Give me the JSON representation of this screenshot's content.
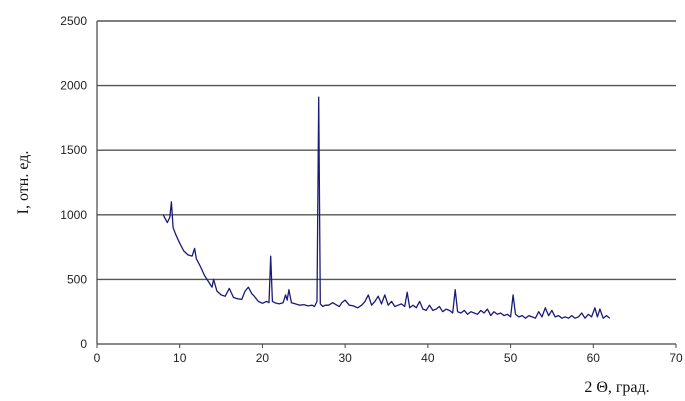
{
  "chart_data": {
    "type": "line",
    "title": "",
    "xlabel": "2 Θ, град.",
    "ylabel": "I, отн. ед.",
    "xlim": [
      0,
      70
    ],
    "ylim": [
      0,
      2500
    ],
    "xticks": [
      "0",
      "10",
      "20",
      "30",
      "40",
      "50",
      "60",
      "70"
    ],
    "yticks": [
      "0",
      "500",
      "1000",
      "1500",
      "2000",
      "2500"
    ],
    "grid": "horizontal",
    "legend": "none",
    "series": [
      {
        "color": "#1a1a7a",
        "x": [
          8.0,
          8.5,
          8.8,
          9.0,
          9.2,
          9.5,
          10.0,
          10.5,
          11.0,
          11.5,
          11.8,
          12.0,
          12.5,
          13.0,
          13.5,
          13.9,
          14.1,
          14.5,
          15.0,
          15.5,
          16.0,
          16.5,
          17.0,
          17.5,
          17.9,
          18.3,
          18.7,
          19.0,
          19.5,
          20.0,
          20.5,
          20.8,
          21.0,
          21.2,
          21.5,
          22.0,
          22.5,
          22.8,
          23.0,
          23.2,
          23.5,
          24.0,
          24.5,
          25.0,
          25.5,
          26.0,
          26.3,
          26.6,
          26.8,
          27.0,
          27.3,
          27.6,
          28.0,
          28.5,
          29.0,
          29.3,
          29.6,
          30.0,
          30.5,
          31.0,
          31.5,
          32.0,
          32.4,
          32.8,
          33.2,
          33.6,
          34.0,
          34.4,
          34.8,
          35.2,
          35.6,
          36.0,
          36.4,
          36.8,
          37.2,
          37.5,
          37.8,
          38.2,
          38.6,
          39.0,
          39.4,
          39.8,
          40.2,
          40.6,
          41.0,
          41.4,
          41.8,
          42.2,
          42.6,
          43.0,
          43.3,
          43.6,
          44.0,
          44.4,
          44.8,
          45.2,
          45.6,
          46.0,
          46.4,
          46.8,
          47.2,
          47.6,
          48.0,
          48.4,
          48.8,
          49.2,
          49.6,
          50.0,
          50.3,
          50.6,
          51.0,
          51.4,
          51.8,
          52.2,
          52.6,
          53.0,
          53.4,
          53.8,
          54.2,
          54.6,
          55.0,
          55.4,
          55.8,
          56.2,
          56.6,
          57.0,
          57.4,
          57.8,
          58.2,
          58.6,
          59.0,
          59.4,
          59.8,
          60.2,
          60.5,
          60.8,
          61.2,
          61.6,
          62.0
        ],
        "y": [
          1000,
          940,
          980,
          1100,
          900,
          850,
          780,
          720,
          690,
          680,
          740,
          660,
          600,
          530,
          480,
          440,
          500,
          410,
          380,
          370,
          430,
          360,
          350,
          345,
          410,
          440,
          390,
          370,
          330,
          315,
          330,
          320,
          680,
          330,
          320,
          310,
          320,
          380,
          340,
          420,
          320,
          310,
          300,
          305,
          295,
          300,
          290,
          330,
          1910,
          310,
          290,
          300,
          300,
          320,
          300,
          290,
          320,
          340,
          300,
          295,
          280,
          300,
          330,
          380,
          300,
          330,
          370,
          310,
          380,
          300,
          330,
          290,
          300,
          310,
          290,
          400,
          280,
          300,
          280,
          330,
          270,
          260,
          300,
          260,
          270,
          290,
          250,
          270,
          260,
          240,
          420,
          250,
          240,
          260,
          230,
          250,
          240,
          230,
          260,
          240,
          270,
          220,
          250,
          230,
          240,
          220,
          230,
          210,
          380,
          230,
          210,
          220,
          200,
          220,
          210,
          200,
          250,
          210,
          280,
          220,
          260,
          210,
          220,
          200,
          210,
          200,
          220,
          200,
          210,
          240,
          200,
          230,
          210,
          280,
          210,
          270,
          200,
          220,
          200
        ]
      }
    ]
  }
}
